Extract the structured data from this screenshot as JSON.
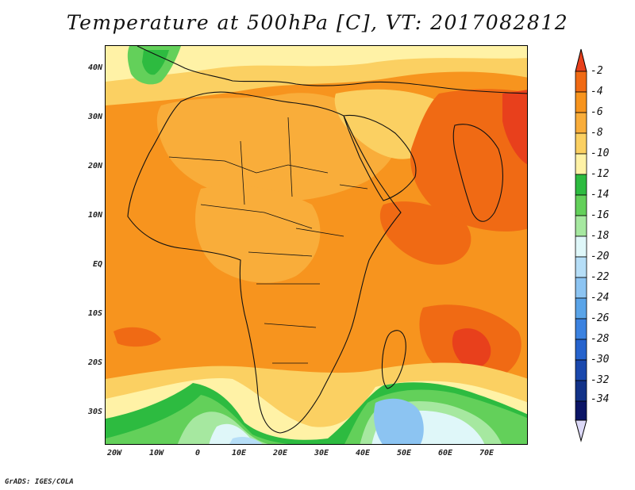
{
  "title": "Temperature at 500hPa [C], VT: 2017082812",
  "credit": "GrADS: IGES/COLA",
  "map": {
    "lon_range": [
      -25,
      80
    ],
    "lat_range": [
      -36,
      45
    ],
    "lat_ticks": [
      {
        "lat": 40,
        "label": "40N"
      },
      {
        "lat": 30,
        "label": "30N"
      },
      {
        "lat": 20,
        "label": "20N"
      },
      {
        "lat": 10,
        "label": "10N"
      },
      {
        "lat": 0,
        "label": "EQ"
      },
      {
        "lat": -10,
        "label": "10S"
      },
      {
        "lat": -20,
        "label": "20S"
      },
      {
        "lat": -30,
        "label": "30S"
      }
    ],
    "lon_ticks": [
      {
        "lon": -20,
        "label": "20W"
      },
      {
        "lon": -10,
        "label": "10W"
      },
      {
        "lon": 0,
        "label": "0"
      },
      {
        "lon": 10,
        "label": "10E"
      },
      {
        "lon": 20,
        "label": "20E"
      },
      {
        "lon": 30,
        "label": "30E"
      },
      {
        "lon": 40,
        "label": "40E"
      },
      {
        "lon": 50,
        "label": "50E"
      },
      {
        "lon": 60,
        "label": "60E"
      },
      {
        "lon": 70,
        "label": "70E"
      }
    ]
  },
  "colorbar": {
    "labels": [
      "-2",
      "-4",
      "-6",
      "-8",
      "-10",
      "-12",
      "-14",
      "-16",
      "-18",
      "-20",
      "-22",
      "-24",
      "-26",
      "-28",
      "-30",
      "-32",
      "-34"
    ],
    "colors": {
      "above_-2": "#e8401c",
      "-4_to_-2": "#f06a14",
      "-6_to_-4": "#f7941e",
      "-8_to_-6": "#f9ad3a",
      "-10_to_-8": "#fbd062",
      "-12_to_-10": "#fff2a6",
      "-14_to_-12": "#2dbb40",
      "-16_to_-14": "#63d05a",
      "-18_to_-16": "#a6e8a0",
      "-20_to_-18": "#dff7f9",
      "-22_to_-20": "#b6def7",
      "-24_to_-22": "#8cc4f2",
      "-26_to_-24": "#5aa4e8",
      "-28_to_-26": "#3b82e0",
      "-30_to_-28": "#2663cd",
      "-32_to_-30": "#1a48ad",
      "-34_to_-32": "#123288",
      "below_-34": "#0b1566",
      "below_-34_arrow": "#dcd9f7"
    }
  }
}
